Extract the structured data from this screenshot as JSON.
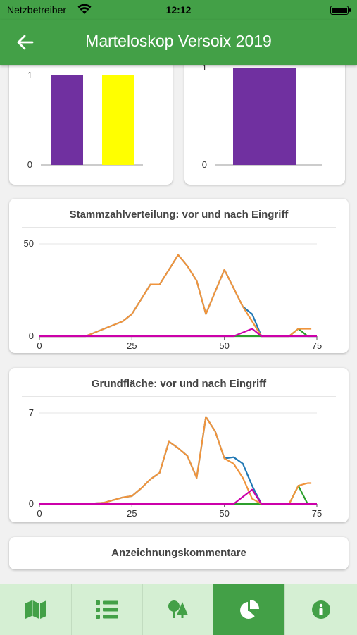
{
  "status_bar": {
    "carrier": "Netzbetreiber",
    "time": "12:12"
  },
  "app_bar": {
    "title": "Marteloskop Versoix 2019",
    "back_icon": "arrow-left-icon"
  },
  "bar_card_left": {
    "chart_data": {
      "type": "bar",
      "categories": [
        "",
        ""
      ],
      "values": [
        1,
        1
      ],
      "colors": [
        "#7030a0",
        "#ffff00"
      ],
      "ylim": [
        0,
        1
      ],
      "yticks": [
        "0",
        "1"
      ]
    }
  },
  "bar_card_right": {
    "chart_data": {
      "type": "bar",
      "categories": [
        ""
      ],
      "values": [
        1
      ],
      "colors": [
        "#7030a0"
      ],
      "ylim": [
        0,
        1
      ],
      "yticks": [
        "0",
        "1"
      ]
    }
  },
  "stem_chart": {
    "title": "Stammzahlverteilung: vor und nach Eingriff",
    "chart_data": {
      "type": "line",
      "xlim": [
        0,
        75
      ],
      "ylim": [
        0,
        50
      ],
      "xticks": [
        "0",
        "25",
        "50",
        "75"
      ],
      "yticks": [
        "0",
        "50"
      ],
      "series": [
        {
          "color": "#1f77b4",
          "points": [
            [
              0,
              0
            ],
            [
              12.5,
              0
            ],
            [
              17.5,
              4
            ],
            [
              22.5,
              8
            ],
            [
              25,
              12
            ],
            [
              27.5,
              20
            ],
            [
              30,
              28
            ],
            [
              32.5,
              28
            ],
            [
              35,
              36
            ],
            [
              37.5,
              44
            ],
            [
              40,
              38
            ],
            [
              42.5,
              30
            ],
            [
              45,
              12
            ],
            [
              47.5,
              24
            ],
            [
              50,
              36
            ],
            [
              52.5,
              26
            ],
            [
              55,
              16
            ],
            [
              57.5,
              12
            ],
            [
              60,
              0
            ],
            [
              62.5,
              0
            ],
            [
              65,
              0
            ],
            [
              67.5,
              0
            ],
            [
              70,
              0
            ],
            [
              72.5,
              0
            ],
            [
              75,
              0
            ]
          ]
        },
        {
          "color": "#2ca02c",
          "points": [
            [
              0,
              0
            ],
            [
              55,
              0
            ],
            [
              57.5,
              0
            ],
            [
              60,
              0
            ],
            [
              65,
              0
            ],
            [
              67.5,
              0
            ],
            [
              70,
              4
            ],
            [
              72.5,
              0
            ],
            [
              75,
              0
            ]
          ]
        },
        {
          "color": "#f0943c",
          "points": [
            [
              0,
              0
            ],
            [
              12.5,
              0
            ],
            [
              17.5,
              4
            ],
            [
              22.5,
              8
            ],
            [
              25,
              12
            ],
            [
              27.5,
              20
            ],
            [
              30,
              28
            ],
            [
              32.5,
              28
            ],
            [
              35,
              36
            ],
            [
              37.5,
              44
            ],
            [
              40,
              38
            ],
            [
              42.5,
              30
            ],
            [
              45,
              12
            ],
            [
              47.5,
              24
            ],
            [
              50,
              36
            ],
            [
              52.5,
              26
            ],
            [
              55,
              16
            ],
            [
              57.5,
              8
            ],
            [
              60,
              0
            ],
            [
              62.5,
              0
            ],
            [
              65,
              0
            ],
            [
              67.5,
              0
            ],
            [
              70,
              4
            ],
            [
              72.5,
              4
            ],
            [
              73.5,
              4
            ]
          ]
        },
        {
          "color": "#cc00aa",
          "points": [
            [
              0,
              0
            ],
            [
              52.5,
              0
            ],
            [
              57.5,
              4
            ],
            [
              60,
              0
            ],
            [
              75,
              0
            ]
          ]
        }
      ]
    }
  },
  "basal_chart": {
    "title": "Grundfläche: vor und nach Eingriff",
    "chart_data": {
      "type": "line",
      "xlim": [
        0,
        75
      ],
      "ylim": [
        0,
        7
      ],
      "xticks": [
        "0",
        "25",
        "50",
        "75"
      ],
      "yticks": [
        "0",
        "7"
      ],
      "series": [
        {
          "color": "#1f77b4",
          "points": [
            [
              0,
              0
            ],
            [
              12.5,
              0
            ],
            [
              17.5,
              0.1
            ],
            [
              22.5,
              0.5
            ],
            [
              25,
              0.6
            ],
            [
              27.5,
              1.2
            ],
            [
              30,
              1.9
            ],
            [
              32.5,
              2.4
            ],
            [
              35,
              4.8
            ],
            [
              37.5,
              4.3
            ],
            [
              40,
              3.7
            ],
            [
              42.5,
              2.0
            ],
            [
              45,
              6.7
            ],
            [
              47.5,
              5.6
            ],
            [
              50,
              3.5
            ],
            [
              52.5,
              3.6
            ],
            [
              55,
              3.1
            ],
            [
              57.5,
              1.4
            ],
            [
              60,
              0
            ],
            [
              62.5,
              0
            ],
            [
              65,
              0
            ],
            [
              67.5,
              0
            ],
            [
              70,
              0
            ],
            [
              72.5,
              0
            ],
            [
              75,
              0
            ]
          ]
        },
        {
          "color": "#2ca02c",
          "points": [
            [
              0,
              0
            ],
            [
              55,
              0
            ],
            [
              57.5,
              0
            ],
            [
              60,
              0
            ],
            [
              65,
              0
            ],
            [
              67.5,
              0
            ],
            [
              70,
              1.4
            ],
            [
              72.5,
              0
            ],
            [
              75,
              0
            ]
          ]
        },
        {
          "color": "#f0943c",
          "points": [
            [
              0,
              0
            ],
            [
              12.5,
              0
            ],
            [
              17.5,
              0.1
            ],
            [
              22.5,
              0.5
            ],
            [
              25,
              0.6
            ],
            [
              27.5,
              1.2
            ],
            [
              30,
              1.9
            ],
            [
              32.5,
              2.4
            ],
            [
              35,
              4.8
            ],
            [
              37.5,
              4.3
            ],
            [
              40,
              3.7
            ],
            [
              42.5,
              2.0
            ],
            [
              45,
              6.7
            ],
            [
              47.5,
              5.6
            ],
            [
              50,
              3.5
            ],
            [
              52.5,
              3.1
            ],
            [
              55,
              2.0
            ],
            [
              57.5,
              0.4
            ],
            [
              60,
              0
            ],
            [
              62.5,
              0
            ],
            [
              65,
              0
            ],
            [
              67.5,
              0
            ],
            [
              70,
              1.4
            ],
            [
              72.5,
              1.6
            ],
            [
              73.5,
              1.6
            ]
          ]
        },
        {
          "color": "#cc00aa",
          "points": [
            [
              0,
              0
            ],
            [
              52.5,
              0
            ],
            [
              57.5,
              1.1
            ],
            [
              60,
              0
            ],
            [
              75,
              0
            ]
          ]
        }
      ]
    }
  },
  "comments_card": {
    "title": "Anzeichnungskommentare"
  },
  "bottom_nav": {
    "items": [
      {
        "icon": "map-icon",
        "active": false
      },
      {
        "icon": "list-icon",
        "active": false
      },
      {
        "icon": "trees-icon",
        "active": false
      },
      {
        "icon": "pie-chart-icon",
        "active": true
      },
      {
        "icon": "info-icon",
        "active": false
      }
    ]
  }
}
